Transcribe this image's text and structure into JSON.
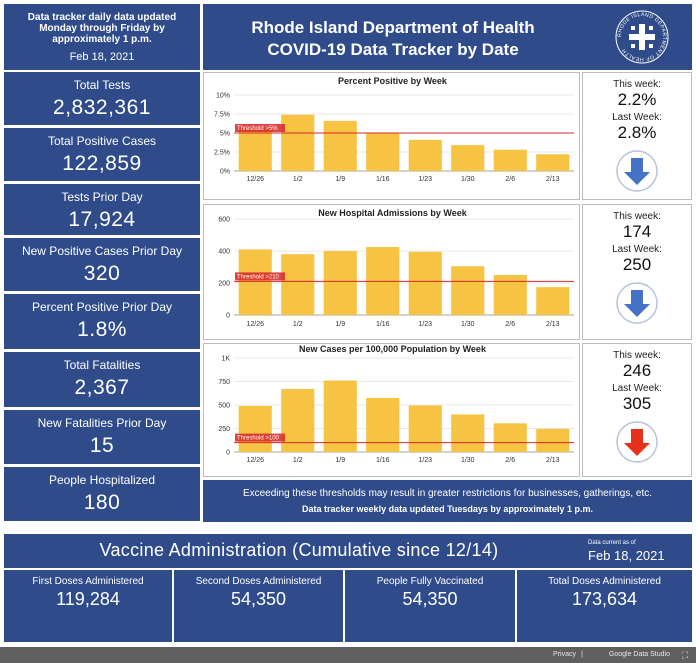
{
  "header": {
    "note_line1": "Data tracker daily data updated",
    "note_line2": "Monday through Friday by",
    "note_line3": "approximately 1 p.m.",
    "note_date": "Feb 18, 2021",
    "title_line1": "Rhode Island Department of Health",
    "title_line2": "COVID-19 Data Tracker by Date",
    "seal_text": "RHODE ISLAND DEPARTMENT OF HEALTH"
  },
  "stats": [
    {
      "label": "Total Tests",
      "value": "2,832,361"
    },
    {
      "label": "Total Positive Cases",
      "value": "122,859"
    },
    {
      "label": "Tests Prior Day",
      "value": "17,924"
    },
    {
      "label": "New Positive Cases Prior Day",
      "value": "320"
    },
    {
      "label": "Percent Positive Prior Day",
      "value": "1.8%"
    },
    {
      "label": "Total Fatalities",
      "value": "2,367"
    },
    {
      "label": "New Fatalities Prior Day",
      "value": "15"
    },
    {
      "label": "People Hospitalized",
      "value": "180"
    }
  ],
  "chart_data": [
    {
      "type": "bar",
      "title": "Percent Positive by Week",
      "categories": [
        "12/26",
        "1/2",
        "1/9",
        "1/16",
        "1/23",
        "1/30",
        "2/6",
        "2/13"
      ],
      "values": [
        5.7,
        7.4,
        6.6,
        5.0,
        4.1,
        3.4,
        2.8,
        2.2
      ],
      "yticks": [
        "0%",
        "2.5%",
        "5%",
        "7.5%",
        "10%"
      ],
      "ylim": [
        0,
        10
      ],
      "threshold": 5,
      "threshold_label": "Threshold >5%",
      "color": "#f6c343",
      "threshold_color": "#d62728"
    },
    {
      "type": "bar",
      "title": "New Hospital Admissions by Week",
      "categories": [
        "12/26",
        "1/2",
        "1/9",
        "1/16",
        "1/23",
        "1/30",
        "2/6",
        "2/13"
      ],
      "values": [
        410,
        380,
        400,
        425,
        395,
        305,
        250,
        174
      ],
      "yticks": [
        "0",
        "200",
        "400",
        "600"
      ],
      "ylim": [
        0,
        600
      ],
      "threshold": 210,
      "threshold_label": "Threshold >210",
      "color": "#f6c343",
      "threshold_color": "#d62728"
    },
    {
      "type": "bar",
      "title": "New Cases per 100,000 Population by Week",
      "categories": [
        "12/26",
        "1/2",
        "1/9",
        "1/16",
        "1/23",
        "1/30",
        "2/6",
        "2/13"
      ],
      "values": [
        490,
        670,
        760,
        575,
        495,
        400,
        305,
        246
      ],
      "yticks": [
        "0",
        "250",
        "500",
        "750",
        "1K"
      ],
      "ylim": [
        0,
        1000
      ],
      "threshold": 100,
      "threshold_label": "Threshold >100",
      "color": "#f6c343",
      "threshold_color": "#d62728"
    }
  ],
  "weekly": [
    {
      "this_label": "This week:",
      "this_value": "2.2%",
      "last_label": "Last Week:",
      "last_value": "2.8%",
      "arrow": "arrow-down-icon",
      "arrow_color": "#4472c4"
    },
    {
      "this_label": "This week:",
      "this_value": "174",
      "last_label": "Last Week:",
      "last_value": "250",
      "arrow": "arrow-down-icon",
      "arrow_color": "#4472c4"
    },
    {
      "this_label": "This week:",
      "this_value": "246",
      "last_label": "Last Week:",
      "last_value": "305",
      "arrow": "arrow-down-icon",
      "arrow_color": "#e8311a"
    }
  ],
  "footnote": {
    "line1": "Exceeding these thresholds may result in greater restrictions for businesses, gatherings, etc.",
    "line2": "Data tracker weekly data updated Tuesdays by approximately 1 p.m."
  },
  "vaccine": {
    "title": "Vaccine Administration (Cumulative since 12/14)",
    "current_label": "Data current as of",
    "current_date": "Feb 18, 2021",
    "cards": [
      {
        "label": "First Doses Administered",
        "value": "119,284"
      },
      {
        "label": "Second Doses Administered",
        "value": "54,350"
      },
      {
        "label": "People Fully Vaccinated",
        "value": "54,350"
      },
      {
        "label": "Total Doses Administered",
        "value": "173,634"
      }
    ]
  },
  "bottom": {
    "privacy": "Privacy",
    "studio": "Google Data Studio"
  },
  "colors": {
    "panel_blue": "#2f4b8a",
    "bar_yellow": "#f6c343",
    "threshold_red": "#d62728"
  }
}
